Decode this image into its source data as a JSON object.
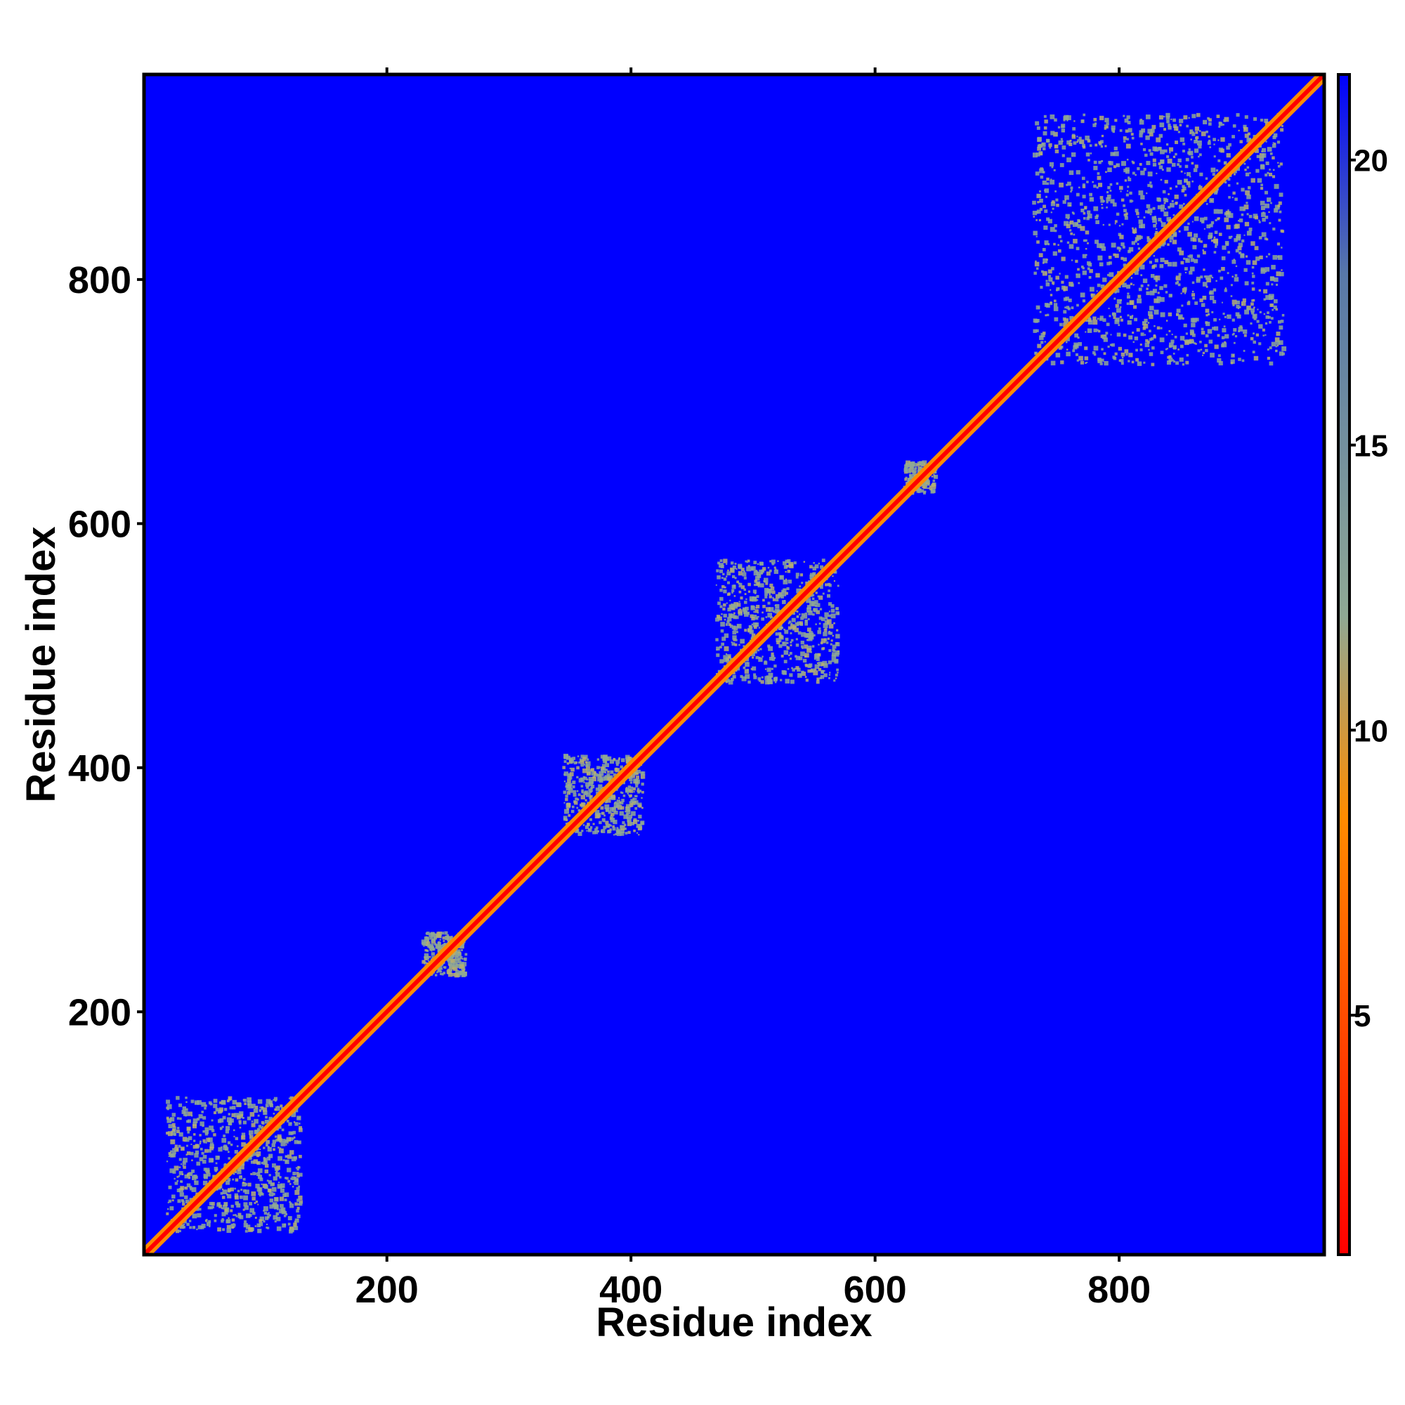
{
  "chart_data": {
    "type": "heatmap",
    "title": "",
    "xlabel": "Residue index",
    "ylabel": "Residue index",
    "xlim": [
      1,
      968
    ],
    "ylim": [
      1,
      968
    ],
    "x_ticks": [
      200,
      400,
      600,
      800
    ],
    "y_ticks": [
      200,
      400,
      600,
      800
    ],
    "top_ticks": [
      200,
      400,
      600,
      800
    ],
    "colorbar": {
      "range": [
        0.8,
        21.5
      ],
      "ticks": [
        5,
        10,
        15,
        20
      ],
      "colors": [
        "#ff0000",
        "#ff8c00",
        "#8fa894",
        "#5878a8",
        "#0000ff"
      ],
      "stops": [
        0.8,
        8.5,
        12,
        18,
        21.5
      ]
    },
    "background_color": "#0000ff",
    "diagonal_color": "#ff0000",
    "contact_color": "#8fa894",
    "domains": [
      {
        "start": 20,
        "end": 130,
        "label": ""
      },
      {
        "start": 230,
        "end": 265,
        "label": ""
      },
      {
        "start": 345,
        "end": 410,
        "label": ""
      },
      {
        "start": 470,
        "end": 570,
        "label": ""
      },
      {
        "start": 625,
        "end": 650,
        "label": ""
      },
      {
        "start": 730,
        "end": 935,
        "label": ""
      }
    ]
  }
}
